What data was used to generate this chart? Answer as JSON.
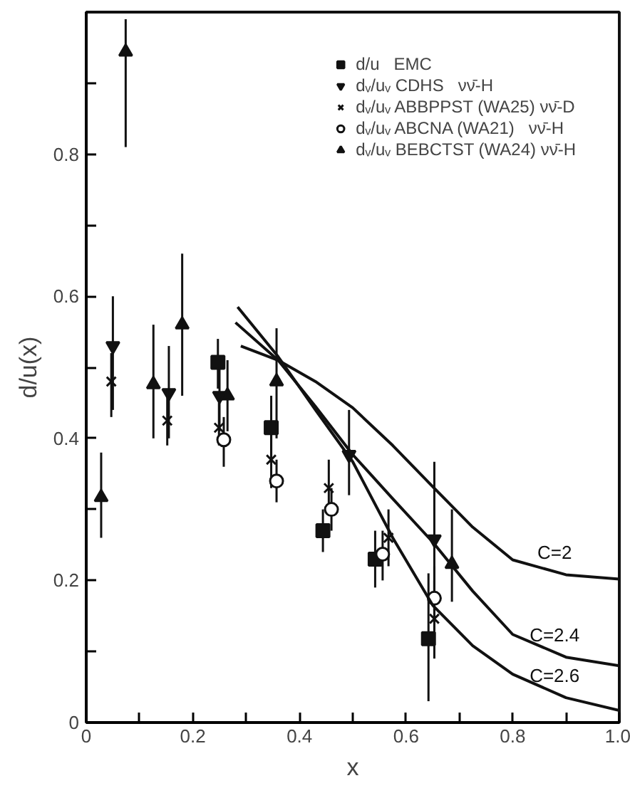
{
  "chart_data": {
    "type": "scatter",
    "xlabel": "x",
    "ylabel": "d/u(x)",
    "xlim": [
      0,
      1
    ],
    "ylim": [
      0,
      1
    ],
    "xticks": [
      0,
      {
        "value": 0.1,
        "label": null
      },
      0.2,
      {
        "value": 0.3,
        "label": null
      },
      0.4,
      {
        "value": 0.5,
        "label": null
      },
      0.6,
      {
        "value": 0.7,
        "label": null
      },
      0.8,
      {
        "value": 0.9,
        "label": null
      },
      {
        "value": 1,
        "label": "1.0"
      }
    ],
    "yticks": [
      0,
      {
        "value": 0.1,
        "label": null
      },
      0.2,
      {
        "value": 0.3,
        "label": null
      },
      0.4,
      {
        "value": 0.5,
        "label": null
      },
      0.6,
      {
        "value": 0.7,
        "label": null
      },
      0.8,
      {
        "value": 0.9,
        "label": null
      }
    ],
    "grid": false,
    "legend": "top right",
    "series": [
      {
        "name": "d/u   EMC",
        "color": "#111111",
        "marker": "square",
        "x": [
          0.247,
          0.347,
          0.444,
          0.542,
          0.642
        ],
        "values": [
          0.507,
          0.415,
          0.27,
          0.23,
          0.118
        ],
        "errors": [
          [
            0.47,
            0.54
          ],
          [
            0.37,
            0.46
          ],
          [
            0.24,
            0.3
          ],
          [
            0.19,
            0.27
          ],
          [
            0.03,
            0.21
          ]
        ]
      },
      {
        "name": "dᵥ/uᵥ CDHS   νν̄-H",
        "color": "#111111",
        "marker": "triangle_down",
        "x": [
          0.05,
          0.155,
          0.25,
          0.493,
          0.653
        ],
        "values": [
          0.53,
          0.464,
          0.46,
          0.377,
          0.258
        ],
        "errors": [
          [
            0.44,
            0.6
          ],
          [
            0.4,
            0.53
          ],
          [
            0.41,
            0.5
          ],
          [
            0.32,
            0.44
          ],
          [
            0.157,
            0.367
          ]
        ]
      },
      {
        "name": "dᵥ/uᵥ ABBPPST (WA25) νν̄-D",
        "color": "#111111",
        "marker": "x",
        "x": [
          0.047,
          0.152,
          0.249,
          0.347,
          0.455,
          0.567,
          0.653
        ],
        "values": [
          0.48,
          0.425,
          0.415,
          0.37,
          0.33,
          0.26,
          0.146
        ],
        "errors": [
          [
            0.43,
            0.52
          ],
          [
            0.39,
            0.47
          ],
          [
            0.39,
            0.45
          ],
          [
            0.33,
            0.41
          ],
          [
            0.3,
            0.37
          ],
          [
            0.22,
            0.3
          ],
          [
            0.09,
            0.2
          ]
        ]
      },
      {
        "name": "dᵥ/uᵥ ABCNA (WA21)   νν̄-H",
        "color": "#111111",
        "marker": "circle",
        "x": [
          0.258,
          0.357,
          0.46,
          0.556,
          0.653
        ],
        "values": [
          0.398,
          0.34,
          0.3,
          0.237,
          0.175
        ],
        "errors": [
          [
            0.36,
            0.43
          ],
          [
            0.31,
            0.37
          ],
          [
            0.27,
            0.33
          ],
          [
            0.2,
            0.27
          ],
          [
            0.13,
            0.22
          ]
        ]
      },
      {
        "name": "dᵥ/uᵥ BEBCTST (WA24) νν̄-H",
        "color": "#111111",
        "marker": "triangle",
        "x": [
          0.028,
          0.074,
          0.126,
          0.18,
          0.265,
          0.357,
          0.686
        ],
        "values": [
          0.317,
          0.944,
          0.476,
          0.56,
          0.46,
          0.48,
          0.223
        ],
        "errors": [
          [
            0.26,
            0.38
          ],
          [
            0.81,
            0.99
          ],
          [
            0.4,
            0.56
          ],
          [
            0.46,
            0.66
          ],
          [
            0.41,
            0.51
          ],
          [
            0.4,
            0.555
          ],
          [
            0.17,
            0.3
          ]
        ]
      },
      {
        "type": "line",
        "name": "C=2",
        "color": "#111111",
        "x": [
          0.29,
          0.36,
          0.43,
          0.5,
          0.575,
          0.65,
          0.725,
          0.8,
          0.9,
          1.0
        ],
        "values": [
          0.53,
          0.51,
          0.48,
          0.443,
          0.39,
          0.332,
          0.275,
          0.229,
          0.208,
          0.202
        ]
      },
      {
        "type": "line",
        "name": "C=2.4",
        "color": "#111111",
        "x": [
          0.28,
          0.36,
          0.43,
          0.5,
          0.575,
          0.65,
          0.725,
          0.8,
          0.9,
          1.0
        ],
        "values": [
          0.563,
          0.51,
          0.445,
          0.377,
          0.315,
          0.254,
          0.185,
          0.124,
          0.092,
          0.08
        ]
      },
      {
        "type": "line",
        "name": "C=2.6",
        "color": "#111111",
        "x": [
          0.284,
          0.36,
          0.43,
          0.5,
          0.575,
          0.65,
          0.725,
          0.8,
          0.9,
          1.0
        ],
        "values": [
          0.585,
          0.515,
          0.44,
          0.367,
          0.26,
          0.165,
          0.108,
          0.068,
          0.035,
          0.017
        ]
      }
    ]
  }
}
